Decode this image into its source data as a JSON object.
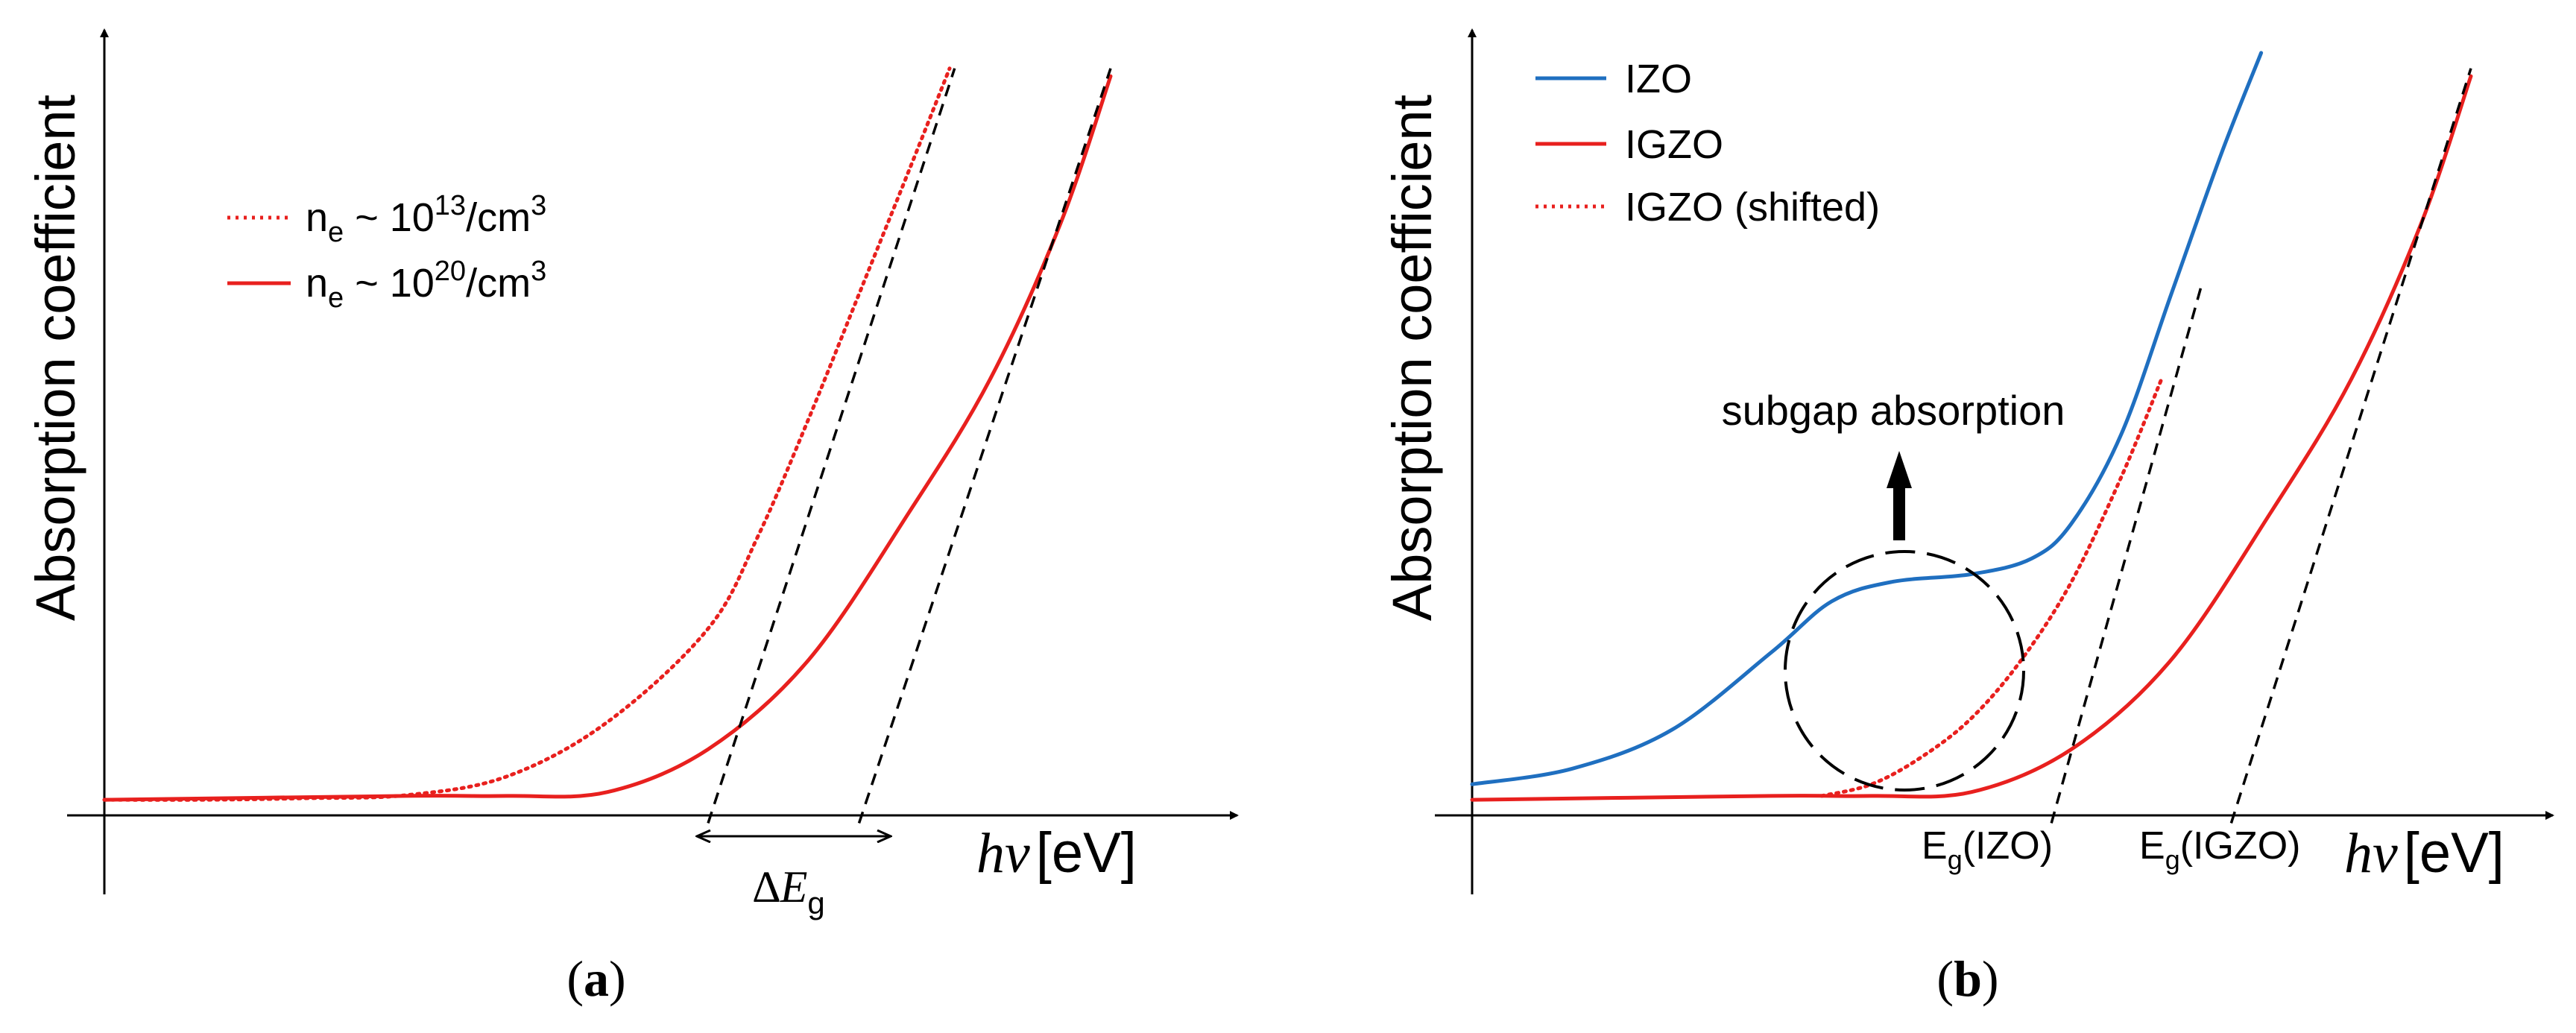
{
  "chart_data": [
    {
      "panel": "a",
      "type": "line",
      "caption_letter": "a",
      "ylabel": "Absorption coefficient",
      "xlabel_symbol": "hν",
      "xlabel_unit": "[eV]",
      "ticks": "none",
      "grid": false,
      "legend_position": "top-left",
      "x_range": [
        0,
        10
      ],
      "y_range": [
        0,
        10
      ],
      "series": [
        {
          "name": "n_e ~ 10^13/cm^3",
          "label_main": "n",
          "label_sub": "e",
          "label_mid": " ~ 10",
          "label_sup": "13",
          "label_tail": "/cm",
          "label_sup2": "3",
          "color": "#e8201e",
          "style": "dotted",
          "points": [
            [
              0,
              0.2
            ],
            [
              1,
              0.2
            ],
            [
              2,
              0.22
            ],
            [
              3,
              0.26
            ],
            [
              4,
              0.5
            ],
            [
              5,
              1.2
            ],
            [
              6,
              2.4
            ],
            [
              6.5,
              3.6
            ],
            [
              7,
              5.1
            ],
            [
              7.5,
              6.7
            ],
            [
              8,
              8.3
            ],
            [
              8.4,
              9.6
            ]
          ]
        },
        {
          "name": "n_e ~ 10^20/cm^3",
          "label_main": "n",
          "label_sub": "e",
          "label_mid": " ~ 10",
          "label_sup": "20",
          "label_tail": "/cm",
          "label_sup2": "3",
          "color": "#e8201e",
          "style": "solid",
          "points": [
            [
              0,
              0.2
            ],
            [
              3,
              0.25
            ],
            [
              4,
              0.25
            ],
            [
              5,
              0.3
            ],
            [
              6,
              0.85
            ],
            [
              7,
              2.0
            ],
            [
              8,
              3.9
            ],
            [
              8.8,
              5.6
            ],
            [
              9.5,
              7.6
            ],
            [
              10,
              9.5
            ]
          ]
        }
      ],
      "tangents": [
        {
          "from": [
            6,
            -0.1
          ],
          "to": [
            8.45,
            9.6
          ],
          "color": "#000000",
          "style": "dashed"
        },
        {
          "from": [
            7.5,
            -0.1
          ],
          "to": [
            10,
            9.6
          ],
          "color": "#000000",
          "style": "dashed"
        }
      ],
      "annotation": {
        "symbol": "∆E",
        "sub": "g",
        "x_from": 6,
        "x_to": 7.5
      }
    },
    {
      "panel": "b",
      "type": "line",
      "caption_letter": "b",
      "ylabel": "Absorption coefficient",
      "xlabel_symbol": "hν",
      "xlabel_unit": "[eV]",
      "ticks": "none",
      "grid": false,
      "legend_position": "top-left",
      "x_range": [
        0,
        10
      ],
      "y_range": [
        0,
        10
      ],
      "series": [
        {
          "name": "IZO",
          "color": "#1f6fc0",
          "style": "solid",
          "points": [
            [
              0,
              0.4
            ],
            [
              1,
              0.6
            ],
            [
              2,
              1.1
            ],
            [
              3,
              2.1
            ],
            [
              3.6,
              2.75
            ],
            [
              4.2,
              3.0
            ],
            [
              5,
              3.1
            ],
            [
              5.6,
              3.3
            ],
            [
              6,
              3.75
            ],
            [
              6.5,
              4.9
            ],
            [
              7,
              6.7
            ],
            [
              7.5,
              8.5
            ],
            [
              7.9,
              9.8
            ]
          ]
        },
        {
          "name": "IGZO",
          "color": "#e8201e",
          "style": "solid",
          "points": [
            [
              0,
              0.2
            ],
            [
              3,
              0.25
            ],
            [
              4,
              0.25
            ],
            [
              5,
              0.3
            ],
            [
              6,
              0.85
            ],
            [
              7,
              2.0
            ],
            [
              8,
              3.9
            ],
            [
              8.8,
              5.6
            ],
            [
              9.5,
              7.6
            ],
            [
              10,
              9.5
            ]
          ]
        },
        {
          "name": "IGZO (shifted)",
          "color": "#e8201e",
          "style": "dotted",
          "points": [
            [
              3.5,
              0.25
            ],
            [
              4,
              0.4
            ],
            [
              4.5,
              0.75
            ],
            [
              5,
              1.25
            ],
            [
              5.5,
              2.0
            ],
            [
              6,
              3.0
            ],
            [
              6.5,
              4.35
            ],
            [
              6.9,
              5.6
            ]
          ]
        }
      ],
      "tangents": [
        {
          "from": [
            5.8,
            -0.1
          ],
          "to": [
            7.3,
            6.8
          ],
          "color": "#000000",
          "style": "dashed"
        },
        {
          "from": [
            7.6,
            -0.1
          ],
          "to": [
            10,
            9.6
          ],
          "color": "#000000",
          "style": "dashed"
        }
      ],
      "annotations": {
        "subgap": "subgap absorption",
        "eg_izo_main": "E",
        "eg_izo_sub": "g",
        "eg_izo_tail": "(IZO)",
        "eg_igzo_main": "E",
        "eg_igzo_sub": "g",
        "eg_igzo_tail": "(IGZO)"
      }
    }
  ]
}
